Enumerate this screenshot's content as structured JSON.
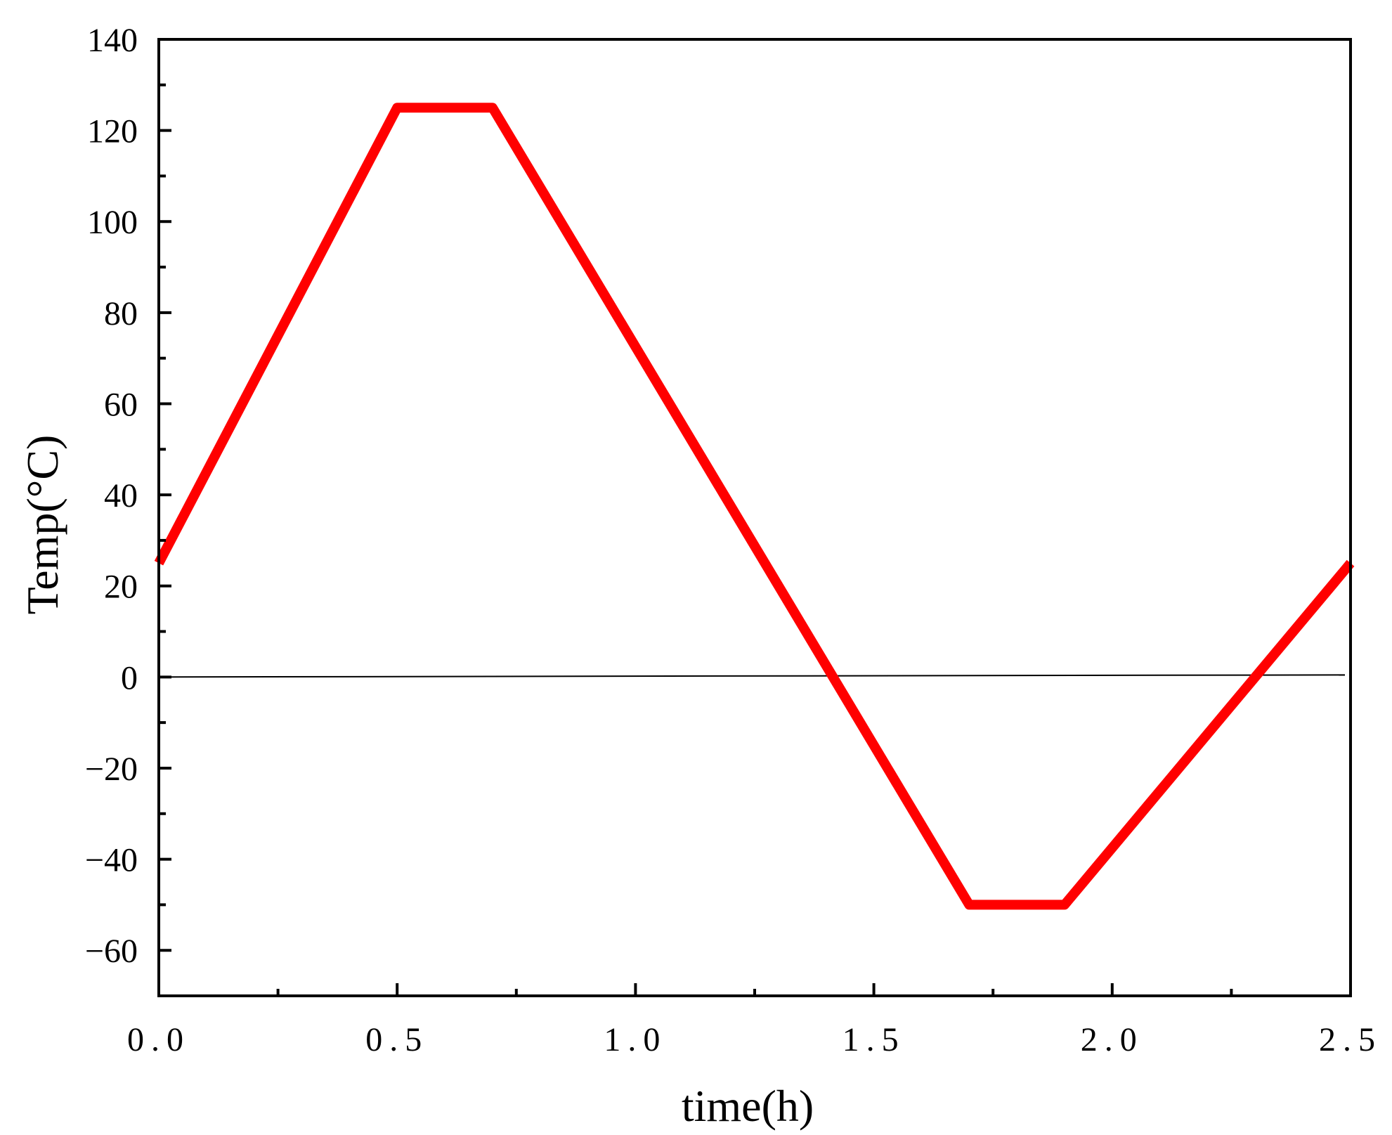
{
  "chart_data": {
    "type": "line",
    "title": "",
    "xlabel": "time(h)",
    "ylabel": "Temp(°C)",
    "xlim": [
      0.0,
      2.5
    ],
    "ylim": [
      -70,
      140
    ],
    "x_ticks": [
      0.0,
      0.5,
      1.0,
      1.5,
      2.0,
      2.5
    ],
    "x_tick_labels": [
      "0.0",
      "0.5",
      "1.0",
      "1.5",
      "2.0",
      "2.5"
    ],
    "x_minor_step": 0.25,
    "y_ticks": [
      -60,
      -40,
      -20,
      0,
      20,
      40,
      60,
      80,
      100,
      120,
      140
    ],
    "y_tick_labels": [
      "−60",
      "−40",
      "−20",
      "0",
      "20",
      "40",
      "60",
      "80",
      "100",
      "120",
      "140"
    ],
    "y_minor_step": 10,
    "grid": false,
    "legend": "none",
    "series": [
      {
        "color": "#ff0000",
        "x": [
          0.0,
          0.5,
          0.7,
          1.7,
          1.9,
          2.5
        ],
        "y": [
          25,
          125,
          125,
          -50,
          -50,
          25
        ]
      }
    ],
    "reference_line": {
      "y": 0,
      "color": "#000000"
    }
  }
}
